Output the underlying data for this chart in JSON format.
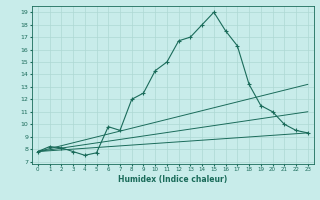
{
  "xlabel": "Humidex (Indice chaleur)",
  "xlim": [
    -0.5,
    23.5
  ],
  "ylim": [
    6.8,
    19.5
  ],
  "yticks": [
    7,
    8,
    9,
    10,
    11,
    12,
    13,
    14,
    15,
    16,
    17,
    18,
    19
  ],
  "xticks": [
    0,
    1,
    2,
    3,
    4,
    5,
    6,
    7,
    8,
    9,
    10,
    11,
    12,
    13,
    14,
    15,
    16,
    17,
    18,
    19,
    20,
    21,
    22,
    23
  ],
  "bg_color": "#c8ecea",
  "grid_color": "#aed8d4",
  "line_color": "#1a6b5a",
  "main_line": {
    "x": [
      0,
      1,
      2,
      3,
      4,
      5,
      6,
      7,
      8,
      9,
      10,
      11,
      12,
      13,
      14,
      15,
      16,
      17,
      18,
      19,
      20,
      21,
      22,
      23
    ],
    "y": [
      7.8,
      8.2,
      8.1,
      7.8,
      7.5,
      7.7,
      9.8,
      9.5,
      12.0,
      12.5,
      14.3,
      15.0,
      16.7,
      17.0,
      18.0,
      19.0,
      17.5,
      16.3,
      13.2,
      11.5,
      11.0,
      10.0,
      9.5,
      9.3
    ]
  },
  "straight_lines": [
    {
      "x0": 0,
      "y0": 7.8,
      "x1": 23,
      "y1": 13.2
    },
    {
      "x0": 0,
      "y0": 7.8,
      "x1": 23,
      "y1": 11.0
    },
    {
      "x0": 0,
      "y0": 7.8,
      "x1": 23,
      "y1": 9.3
    }
  ]
}
